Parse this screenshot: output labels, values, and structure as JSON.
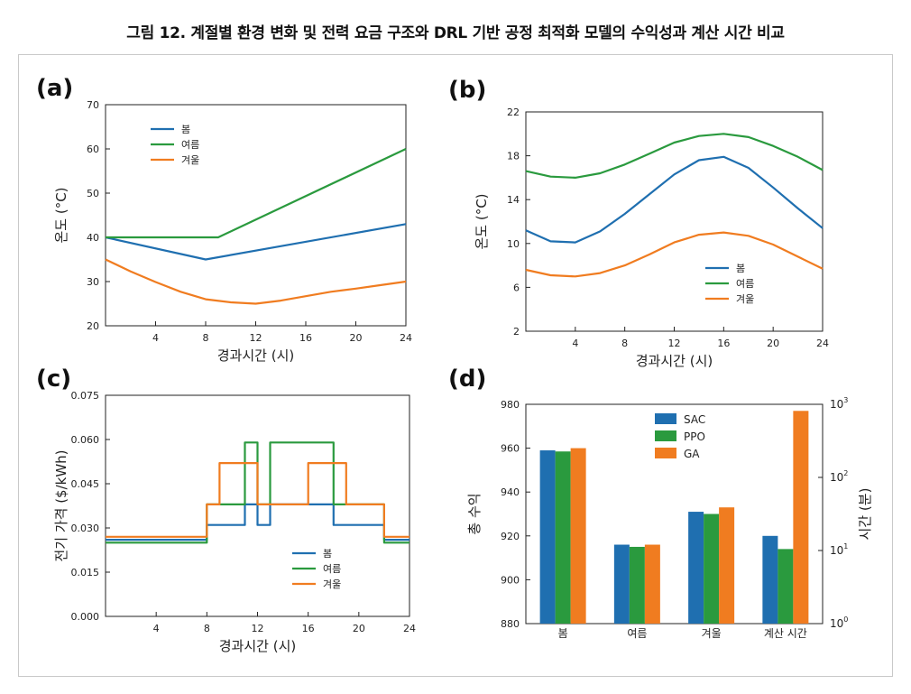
{
  "title": "그림 12. 계절별 환경 변화 및 전력 요금 구조와 DRL 기반 공정 최적화 모델의 수익성과 계산 시간 비교",
  "colors": {
    "spring": "#1f6fb0",
    "summer": "#2a9a3e",
    "winter": "#f07c20"
  },
  "chart_data": [
    {
      "panel": "(a)",
      "type": "line",
      "xlabel": "경과시간 (시)",
      "ylabel": "온도 (°C)",
      "xlim": [
        0,
        24
      ],
      "ylim": [
        20,
        70
      ],
      "xticks": [
        4,
        8,
        12,
        16,
        20,
        24
      ],
      "yticks": [
        20,
        30,
        40,
        50,
        60,
        70
      ],
      "legend_position": "top-left",
      "series": [
        {
          "name": "봄",
          "color": "#1f6fb0",
          "x": [
            0,
            8,
            24
          ],
          "y": [
            40,
            35,
            43
          ]
        },
        {
          "name": "여름",
          "color": "#2a9a3e",
          "x": [
            0,
            9,
            24
          ],
          "y": [
            40,
            40,
            60
          ]
        },
        {
          "name": "겨울",
          "color": "#f07c20",
          "x": [
            0,
            2,
            4,
            6,
            8,
            10,
            12,
            14,
            16,
            18,
            20,
            22,
            24
          ],
          "y": [
            35,
            32.3,
            29.9,
            27.7,
            26,
            25.3,
            25,
            25.7,
            26.7,
            27.7,
            28.4,
            29.2,
            30
          ]
        }
      ]
    },
    {
      "panel": "(b)",
      "type": "line",
      "xlabel": "경과시간 (시)",
      "ylabel": "온도 (°C)",
      "xlim": [
        0,
        24
      ],
      "ylim": [
        2,
        22
      ],
      "xticks": [
        4,
        8,
        12,
        16,
        20,
        24
      ],
      "yticks": [
        2,
        6,
        10,
        14,
        18,
        22
      ],
      "legend_position": "bottom-right",
      "series": [
        {
          "name": "봄",
          "color": "#1f6fb0",
          "x": [
            0,
            2,
            4,
            6,
            8,
            10,
            12,
            14,
            16,
            18,
            20,
            22,
            24
          ],
          "y": [
            11.2,
            10.2,
            10.1,
            11.1,
            12.7,
            14.5,
            16.3,
            17.6,
            17.9,
            16.9,
            15.1,
            13.2,
            11.4
          ]
        },
        {
          "name": "여름",
          "color": "#2a9a3e",
          "x": [
            0,
            2,
            4,
            6,
            8,
            10,
            12,
            14,
            16,
            18,
            20,
            22,
            24
          ],
          "y": [
            16.6,
            16.1,
            16.0,
            16.4,
            17.2,
            18.2,
            19.2,
            19.8,
            20.0,
            19.7,
            18.9,
            17.9,
            16.7
          ]
        },
        {
          "name": "겨울",
          "color": "#f07c20",
          "x": [
            0,
            2,
            4,
            6,
            8,
            10,
            12,
            14,
            16,
            18,
            20,
            22,
            24
          ],
          "y": [
            7.6,
            7.1,
            7.0,
            7.3,
            8.0,
            9.0,
            10.1,
            10.8,
            11.0,
            10.7,
            9.9,
            8.8,
            7.7
          ]
        }
      ]
    },
    {
      "panel": "(c)",
      "type": "line",
      "step": true,
      "xlabel": "경과시간 (시)",
      "ylabel": "전기 가격 ($/kWh)",
      "xlim": [
        0,
        24
      ],
      "ylim": [
        0.0,
        0.075
      ],
      "xticks": [
        4,
        8,
        12,
        16,
        20,
        24
      ],
      "yticks": [
        "0.000",
        "0.015",
        "0.030",
        "0.045",
        "0.060",
        "0.075"
      ],
      "legend_position": "bottom-right",
      "series": [
        {
          "name": "봄",
          "color": "#1f6fb0",
          "x": [
            0,
            8,
            8,
            11,
            11,
            12,
            12,
            13,
            13,
            18,
            18,
            22,
            22,
            24
          ],
          "y": [
            0.026,
            0.026,
            0.031,
            0.031,
            0.038,
            0.038,
            0.031,
            0.031,
            0.038,
            0.038,
            0.031,
            0.031,
            0.026,
            0.026
          ]
        },
        {
          "name": "여름",
          "color": "#2a9a3e",
          "x": [
            0,
            8,
            8,
            11,
            11,
            12,
            12,
            13,
            13,
            18,
            18,
            22,
            22,
            24
          ],
          "y": [
            0.025,
            0.025,
            0.038,
            0.038,
            0.059,
            0.059,
            0.038,
            0.038,
            0.059,
            0.059,
            0.038,
            0.038,
            0.025,
            0.025
          ]
        },
        {
          "name": "겨울",
          "color": "#f07c20",
          "x": [
            0,
            8,
            8,
            9,
            9,
            12,
            12,
            16,
            16,
            19,
            19,
            22,
            22,
            24
          ],
          "y": [
            0.027,
            0.027,
            0.038,
            0.038,
            0.052,
            0.052,
            0.038,
            0.038,
            0.052,
            0.052,
            0.038,
            0.038,
            0.027,
            0.027
          ]
        }
      ]
    },
    {
      "panel": "(d)",
      "type": "bar",
      "ylabel": "총 수익",
      "y2label": "시간 (분)",
      "ylim": [
        880,
        980
      ],
      "yticks": [
        880,
        900,
        920,
        940,
        960,
        980
      ],
      "y2ticks": [
        "10",
        "10",
        "10",
        "10"
      ],
      "y2tick_exponents": [
        "0",
        "1",
        "2",
        "3"
      ],
      "y2scale": "log",
      "y2lim": [
        1,
        1000
      ],
      "legend_position": "top-center",
      "categories": [
        "봄",
        "여름",
        "겨울",
        "계산 시간"
      ],
      "series": [
        {
          "name": "SAC",
          "color": "#1f6fb0",
          "values": [
            959,
            916,
            931,
            920
          ]
        },
        {
          "name": "PPO",
          "color": "#2a9a3e",
          "values": [
            958.5,
            915,
            930,
            914
          ]
        },
        {
          "name": "GA",
          "color": "#f07c20",
          "values": [
            960,
            916,
            933,
            977
          ]
        }
      ]
    }
  ]
}
